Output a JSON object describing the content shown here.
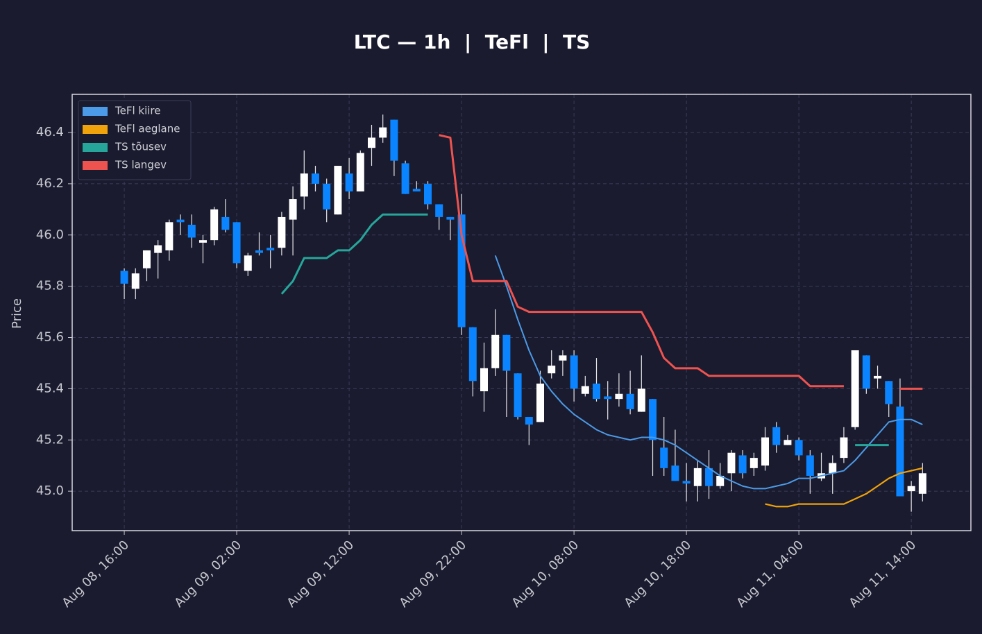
{
  "chart_data": {
    "type": "candlestick",
    "title": "LTC — 1h  |  TeFl  |  TS",
    "y_label": "Price",
    "up_color": "#ffffff",
    "down_color": "#0a84ff",
    "grid": true,
    "legend": "upper left",
    "x": [
      "Aug 08, 16:00",
      "Aug 08, 17:00",
      "Aug 08, 18:00",
      "Aug 08, 19:00",
      "Aug 08, 20:00",
      "Aug 08, 21:00",
      "Aug 08, 22:00",
      "Aug 08, 23:00",
      "Aug 09, 00:00",
      "Aug 09, 01:00",
      "Aug 09, 02:00",
      "Aug 09, 03:00",
      "Aug 09, 04:00",
      "Aug 09, 05:00",
      "Aug 09, 06:00",
      "Aug 09, 07:00",
      "Aug 09, 08:00",
      "Aug 09, 09:00",
      "Aug 09, 10:00",
      "Aug 09, 11:00",
      "Aug 09, 12:00",
      "Aug 09, 13:00",
      "Aug 09, 14:00",
      "Aug 09, 15:00",
      "Aug 09, 16:00",
      "Aug 09, 17:00",
      "Aug 09, 18:00",
      "Aug 09, 19:00",
      "Aug 09, 20:00",
      "Aug 09, 21:00",
      "Aug 09, 22:00",
      "Aug 09, 23:00",
      "Aug 10, 00:00",
      "Aug 10, 01:00",
      "Aug 10, 02:00",
      "Aug 10, 03:00",
      "Aug 10, 04:00",
      "Aug 10, 05:00",
      "Aug 10, 06:00",
      "Aug 10, 07:00",
      "Aug 10, 08:00",
      "Aug 10, 09:00",
      "Aug 10, 10:00",
      "Aug 10, 11:00",
      "Aug 10, 12:00",
      "Aug 10, 13:00",
      "Aug 10, 14:00",
      "Aug 10, 15:00",
      "Aug 10, 16:00",
      "Aug 10, 17:00",
      "Aug 10, 18:00",
      "Aug 10, 19:00",
      "Aug 10, 20:00",
      "Aug 10, 21:00",
      "Aug 10, 22:00",
      "Aug 10, 23:00",
      "Aug 11, 00:00",
      "Aug 11, 01:00",
      "Aug 11, 02:00",
      "Aug 11, 03:00",
      "Aug 11, 04:00",
      "Aug 11, 05:00",
      "Aug 11, 06:00",
      "Aug 11, 07:00",
      "Aug 11, 08:00",
      "Aug 11, 09:00",
      "Aug 11, 10:00",
      "Aug 11, 11:00",
      "Aug 11, 12:00",
      "Aug 11, 13:00",
      "Aug 11, 14:00",
      "Aug 11, 15:00"
    ],
    "open": [
      45.86,
      45.79,
      45.87,
      45.93,
      45.94,
      46.06,
      46.04,
      45.97,
      45.98,
      46.07,
      46.05,
      45.86,
      45.94,
      45.95,
      45.95,
      46.06,
      46.15,
      46.24,
      46.2,
      46.08,
      46.24,
      46.17,
      46.34,
      46.38,
      46.45,
      46.28,
      46.18,
      46.2,
      46.12,
      46.07,
      46.08,
      45.64,
      45.39,
      45.48,
      45.61,
      45.46,
      45.29,
      45.27,
      45.46,
      45.51,
      45.53,
      45.38,
      45.42,
      45.37,
      45.36,
      45.38,
      45.31,
      45.36,
      45.17,
      45.1,
      45.04,
      45.02,
      45.09,
      45.02,
      45.07,
      45.14,
      45.09,
      45.1,
      45.25,
      45.18,
      45.2,
      45.14,
      45.05,
      45.07,
      45.13,
      45.25,
      45.53,
      45.44,
      45.43,
      45.33,
      45.0,
      44.99
    ],
    "high": [
      45.87,
      45.87,
      45.94,
      45.98,
      46.06,
      46.08,
      46.08,
      46.0,
      46.11,
      46.14,
      46.05,
      45.93,
      46.01,
      46.0,
      46.09,
      46.19,
      46.33,
      46.27,
      46.22,
      46.27,
      46.3,
      46.33,
      46.43,
      46.47,
      46.45,
      46.29,
      46.21,
      46.21,
      46.12,
      46.07,
      46.16,
      45.64,
      45.58,
      45.71,
      45.61,
      45.46,
      45.29,
      45.47,
      45.55,
      45.55,
      45.55,
      45.45,
      45.52,
      45.43,
      45.46,
      45.47,
      45.53,
      45.36,
      45.29,
      45.24,
      45.11,
      45.12,
      45.16,
      45.11,
      45.16,
      45.16,
      45.15,
      45.25,
      45.27,
      45.22,
      45.21,
      45.16,
      45.15,
      45.14,
      45.25,
      45.55,
      45.53,
      45.49,
      45.43,
      45.44,
      45.04,
      45.11
    ],
    "low": [
      45.75,
      45.75,
      45.82,
      45.83,
      45.9,
      46.0,
      45.95,
      45.89,
      45.96,
      46.01,
      45.87,
      45.84,
      45.92,
      45.87,
      45.92,
      45.92,
      46.1,
      46.17,
      46.05,
      46.08,
      46.14,
      46.17,
      46.27,
      46.36,
      46.23,
      46.16,
      46.17,
      46.1,
      46.02,
      45.98,
      45.61,
      45.37,
      45.31,
      45.45,
      45.29,
      45.28,
      45.18,
      45.27,
      45.44,
      45.45,
      45.35,
      45.37,
      45.35,
      45.28,
      45.33,
      45.3,
      45.31,
      45.06,
      45.06,
      45.04,
      44.96,
      44.96,
      44.97,
      45.01,
      45.0,
      45.05,
      45.06,
      45.08,
      45.15,
      45.18,
      45.12,
      44.99,
      45.04,
      44.99,
      45.11,
      45.24,
      45.38,
      45.4,
      45.29,
      44.98,
      44.92,
      44.96
    ],
    "close": [
      45.81,
      45.85,
      45.94,
      45.96,
      46.05,
      46.05,
      45.99,
      45.98,
      46.1,
      46.02,
      45.89,
      45.92,
      45.93,
      45.94,
      46.07,
      46.14,
      46.24,
      46.2,
      46.1,
      46.27,
      46.17,
      46.32,
      46.38,
      46.42,
      46.29,
      46.16,
      46.17,
      46.12,
      46.07,
      46.06,
      45.64,
      45.43,
      45.48,
      45.61,
      45.47,
      45.29,
      45.26,
      45.42,
      45.49,
      45.53,
      45.4,
      45.41,
      45.36,
      45.36,
      45.38,
      45.32,
      45.4,
      45.2,
      45.09,
      45.04,
      45.03,
      45.09,
      45.02,
      45.06,
      45.15,
      45.07,
      45.13,
      45.21,
      45.18,
      45.2,
      45.14,
      45.06,
      45.07,
      45.11,
      45.21,
      45.55,
      45.4,
      45.45,
      45.34,
      44.98,
      45.02,
      45.07
    ],
    "series": [
      {
        "name": "TeFl kiire",
        "color": "#4c9be8",
        "width": 2,
        "values": [
          null,
          null,
          null,
          null,
          null,
          null,
          null,
          null,
          null,
          null,
          null,
          null,
          null,
          null,
          null,
          null,
          null,
          null,
          null,
          null,
          null,
          null,
          null,
          null,
          null,
          null,
          null,
          null,
          null,
          null,
          null,
          null,
          null,
          45.92,
          45.8,
          45.67,
          45.55,
          45.45,
          45.39,
          45.34,
          45.3,
          45.27,
          45.24,
          45.22,
          45.21,
          45.2,
          45.21,
          45.21,
          45.2,
          45.18,
          45.15,
          45.12,
          45.09,
          45.06,
          45.04,
          45.02,
          45.01,
          45.01,
          45.02,
          45.03,
          45.05,
          45.05,
          45.06,
          45.07,
          45.08,
          45.12,
          45.17,
          45.22,
          45.27,
          45.28,
          45.28,
          45.26
        ]
      },
      {
        "name": "TeFl aeglane",
        "color": "#f0a30a",
        "width": 2.2,
        "values": [
          null,
          null,
          null,
          null,
          null,
          null,
          null,
          null,
          null,
          null,
          null,
          null,
          null,
          null,
          null,
          null,
          null,
          null,
          null,
          null,
          null,
          null,
          null,
          null,
          null,
          null,
          null,
          null,
          null,
          null,
          null,
          null,
          null,
          null,
          null,
          null,
          null,
          null,
          null,
          null,
          null,
          null,
          null,
          null,
          null,
          null,
          null,
          null,
          null,
          null,
          null,
          null,
          null,
          null,
          null,
          null,
          null,
          44.95,
          44.94,
          44.94,
          44.95,
          44.95,
          44.95,
          44.95,
          44.95,
          44.97,
          44.99,
          45.02,
          45.05,
          45.07,
          45.08,
          45.09
        ]
      },
      {
        "name": "TS tõusev",
        "color": "#26a69a",
        "width": 3,
        "values": [
          null,
          null,
          null,
          null,
          null,
          null,
          null,
          null,
          null,
          null,
          null,
          null,
          null,
          null,
          45.77,
          45.82,
          45.91,
          45.91,
          45.91,
          45.94,
          45.94,
          45.98,
          46.04,
          46.08,
          46.08,
          46.08,
          46.08,
          46.08,
          null,
          null,
          null,
          null,
          null,
          null,
          null,
          null,
          null,
          null,
          null,
          null,
          null,
          null,
          null,
          null,
          null,
          null,
          null,
          null,
          null,
          null,
          null,
          null,
          null,
          null,
          null,
          null,
          null,
          null,
          null,
          null,
          null,
          null,
          null,
          null,
          null,
          45.18,
          45.18,
          45.18,
          45.18,
          null,
          null,
          null
        ]
      },
      {
        "name": "TS langev",
        "color": "#ef5350",
        "width": 3,
        "values": [
          null,
          null,
          null,
          null,
          null,
          null,
          null,
          null,
          null,
          null,
          null,
          null,
          null,
          null,
          null,
          null,
          null,
          null,
          null,
          null,
          null,
          null,
          null,
          null,
          null,
          null,
          null,
          null,
          46.39,
          46.38,
          46.0,
          45.82,
          45.82,
          45.82,
          45.82,
          45.72,
          45.7,
          45.7,
          45.7,
          45.7,
          45.7,
          45.7,
          45.7,
          45.7,
          45.7,
          45.7,
          45.7,
          45.62,
          45.52,
          45.48,
          45.48,
          45.48,
          45.45,
          45.45,
          45.45,
          45.45,
          45.45,
          45.45,
          45.45,
          45.45,
          45.45,
          45.41,
          45.41,
          45.41,
          45.41,
          null,
          null,
          null,
          null,
          45.4,
          45.4,
          45.4
        ]
      }
    ],
    "xlim": [
      "Aug 08, 11:22",
      "Aug 11, 19:18"
    ],
    "xticks": [
      "Aug 08, 16:00",
      "Aug 09, 02:00",
      "Aug 09, 12:00",
      "Aug 09, 22:00",
      "Aug 10, 08:00",
      "Aug 10, 18:00",
      "Aug 11, 04:00",
      "Aug 11, 14:00"
    ],
    "ylim": [
      44.846,
      46.549
    ],
    "yticks": [
      {
        "value": 45,
        "label": "45.0"
      },
      45.2,
      45.4,
      45.6,
      45.8,
      {
        "value": 46,
        "label": "46.0"
      },
      46.2,
      46.4
    ]
  }
}
